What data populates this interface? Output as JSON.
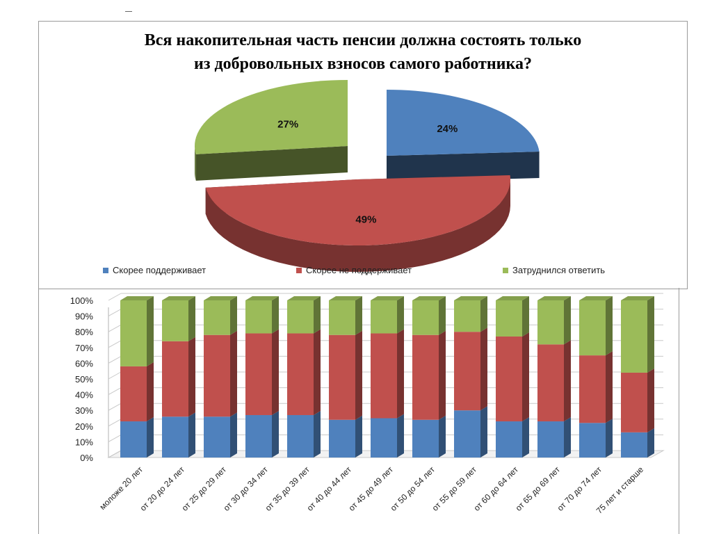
{
  "chart_data": [
    {
      "type": "pie",
      "title": [
        "Вся накопительная часть пенсии должна состоять только",
        "из добровольных взносов самого работника?"
      ],
      "slices": [
        {
          "name": "Скорее поддерживает",
          "value": 24,
          "label": "24%",
          "color": "#4f81bd"
        },
        {
          "name": "Скорее не поддерживает",
          "value": 49,
          "label": "49%",
          "color": "#c0504d"
        },
        {
          "name": "Затруднился ответить",
          "value": 27,
          "label": "27%",
          "color": "#9bbb59"
        }
      ],
      "legend_position": "bottom"
    },
    {
      "type": "bar",
      "stacked": true,
      "percent": true,
      "ylim": [
        0,
        100
      ],
      "yticks": [
        "0%",
        "10%",
        "20%",
        "30%",
        "40%",
        "50%",
        "60%",
        "70%",
        "80%",
        "90%",
        "100%"
      ],
      "grid": true,
      "categories": [
        "моложе 20 лет",
        "от 20 до 24 лет",
        "от 25 до 29 лет",
        "от 30 до 34 лет",
        "от 35 до 39 лет",
        "от 40 до 44 лет",
        "от 45 до 49 лет",
        "от 50 до 54 лет",
        "от 55 до 59 лет",
        "от 60 до 64 лет",
        "от 65 до 69 лет",
        "от 70 до 74 лет",
        "75 лет и старше"
      ],
      "series": [
        {
          "name": "Скорее поддерживает",
          "color": "#4f81bd",
          "values": [
            23,
            26,
            26,
            27,
            27,
            24,
            25,
            24,
            30,
            23,
            23,
            22,
            16
          ]
        },
        {
          "name": "Скорее не поддерживает",
          "color": "#c0504d",
          "values": [
            35,
            48,
            52,
            52,
            52,
            54,
            54,
            54,
            50,
            54,
            49,
            43,
            38
          ]
        },
        {
          "name": "Затруднился ответить",
          "color": "#9bbb59",
          "values": [
            42,
            26,
            22,
            21,
            21,
            22,
            21,
            22,
            20,
            23,
            28,
            35,
            46
          ]
        }
      ]
    }
  ]
}
